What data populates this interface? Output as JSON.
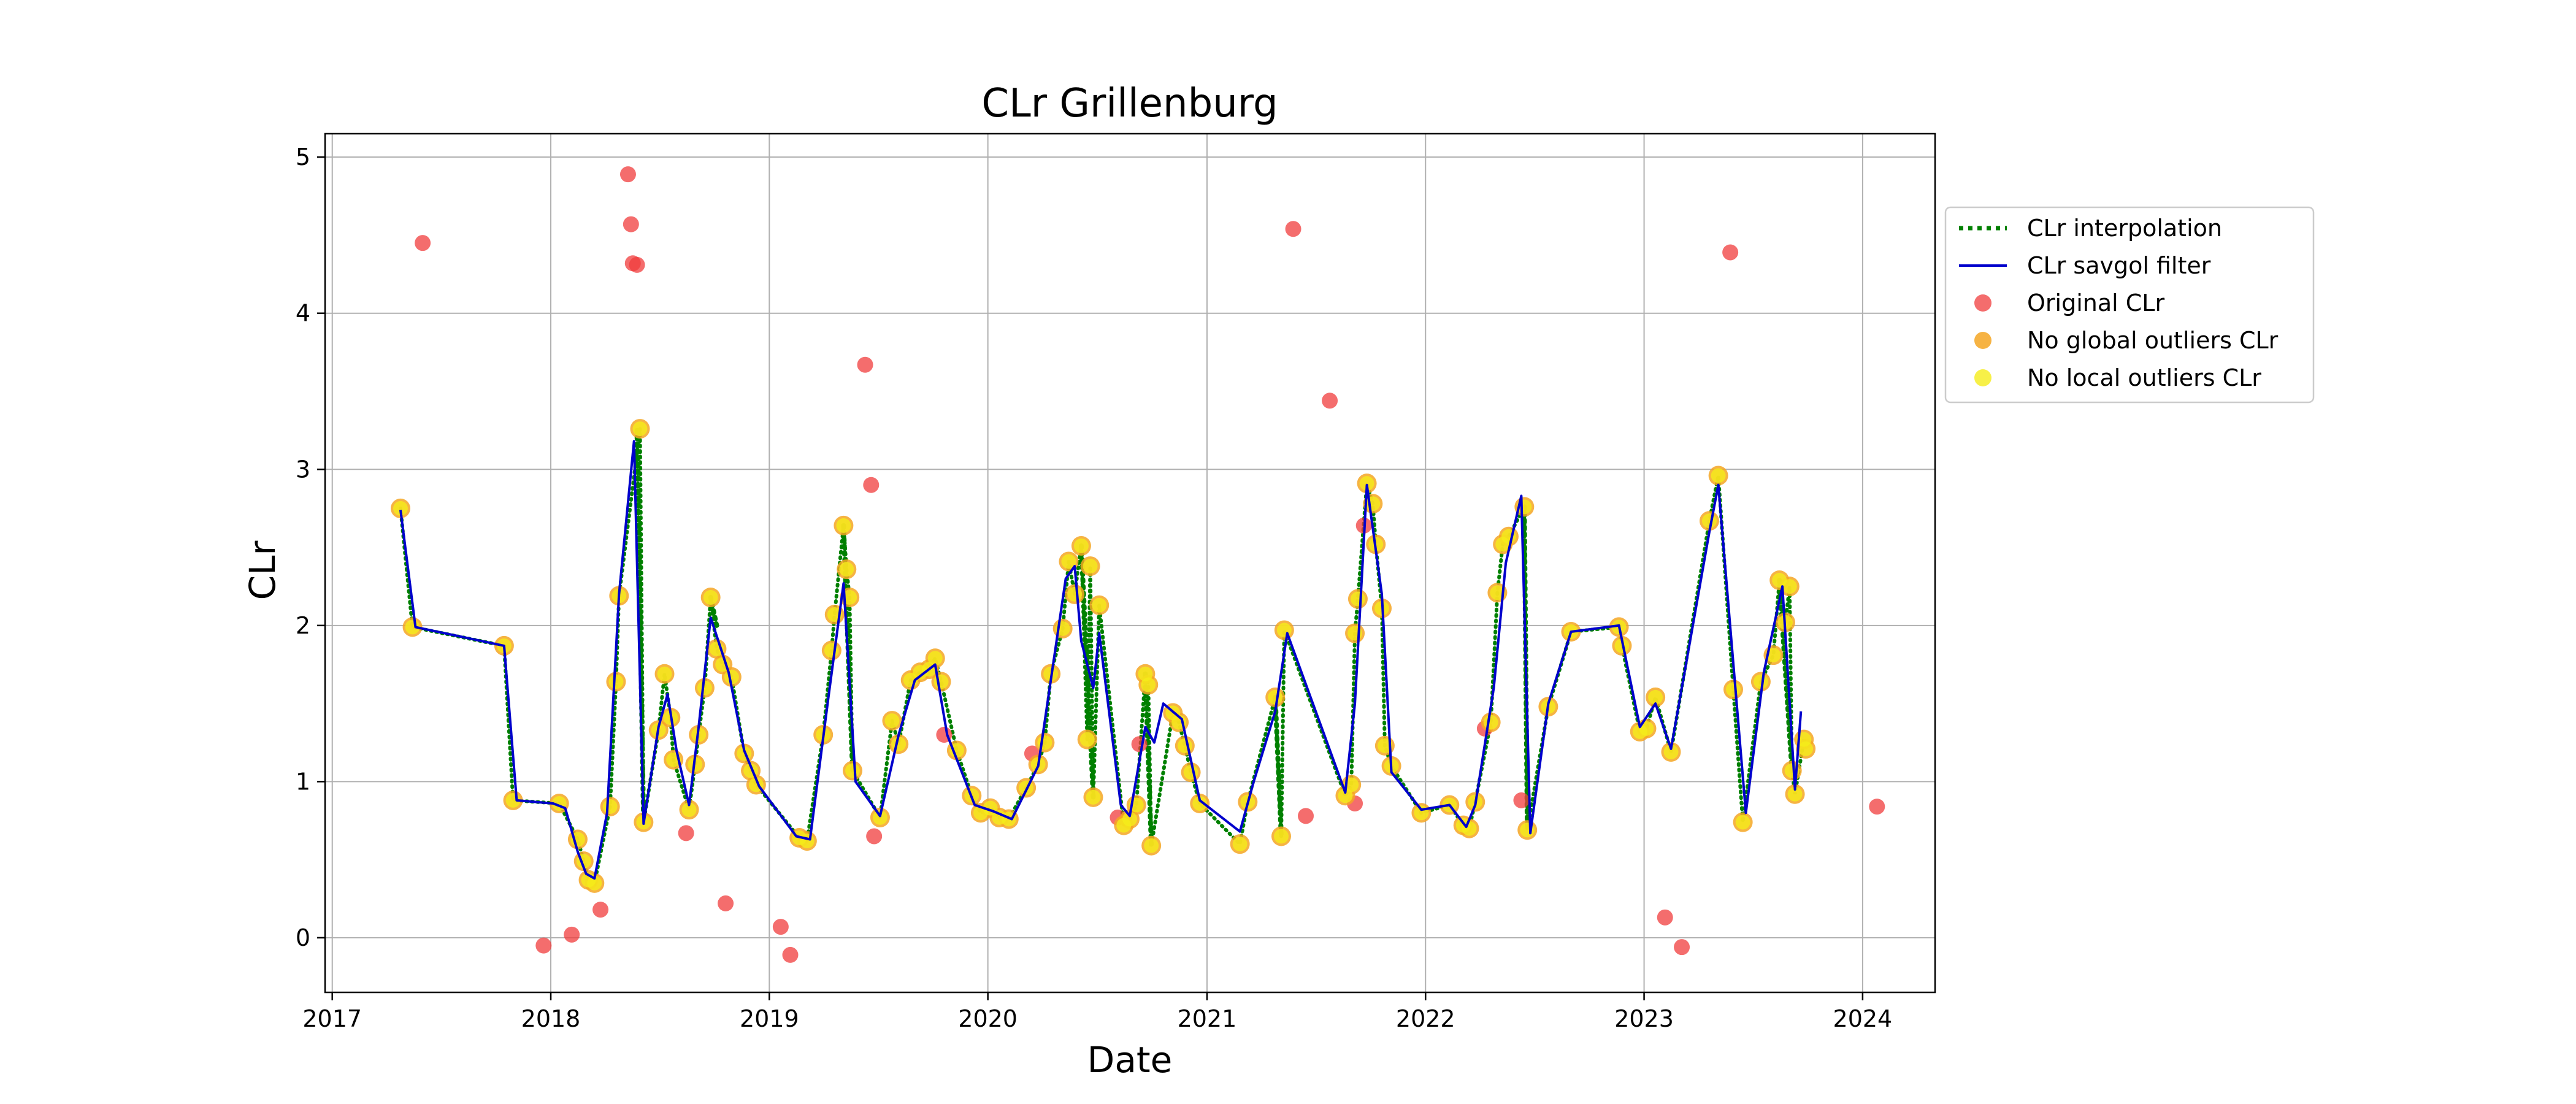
{
  "chart_data": {
    "type": "line",
    "title": "CLr Grillenburg",
    "xlabel": "Date",
    "ylabel": "CLr",
    "x_axis_type": "date",
    "xlim": [
      "2016-12-20",
      "2024-05-01"
    ],
    "ylim": [
      -0.35,
      5.15
    ],
    "x_ticks": [
      "2017",
      "2018",
      "2019",
      "2020",
      "2021",
      "2022",
      "2023",
      "2024"
    ],
    "y_ticks": [
      "0",
      "1",
      "2",
      "3",
      "4",
      "5"
    ],
    "grid": true,
    "legend_position": "right-outside-top",
    "colors": {
      "interpolation": "#008000",
      "savgol": "#0000cc",
      "original": "#f03c3c",
      "global": "#f5a623",
      "local": "#f5ec1a"
    },
    "legend": [
      {
        "key": "interpolation",
        "label": "CLr interpolation"
      },
      {
        "key": "savgol",
        "label": "CLr savgol filter"
      },
      {
        "key": "original",
        "label": "Original CLr"
      },
      {
        "key": "global",
        "label": "No global outliers CLr"
      },
      {
        "key": "local",
        "label": "No local outliers CLr"
      }
    ],
    "series": [
      {
        "name": "Original CLr",
        "role": "outliers",
        "points": [
          [
            "2017-06-01",
            4.45
          ],
          [
            "2017-12-20",
            -0.05
          ],
          [
            "2018-02-05",
            0.02
          ],
          [
            "2018-03-25",
            0.18
          ],
          [
            "2018-05-10",
            4.89
          ],
          [
            "2018-05-15",
            4.57
          ],
          [
            "2018-05-18",
            4.32
          ],
          [
            "2018-05-25",
            4.31
          ],
          [
            "2018-08-15",
            0.67
          ],
          [
            "2018-10-20",
            0.22
          ],
          [
            "2019-01-20",
            0.07
          ],
          [
            "2019-02-05",
            -0.11
          ],
          [
            "2019-06-10",
            3.67
          ],
          [
            "2019-06-20",
            2.9
          ],
          [
            "2019-06-25",
            0.65
          ],
          [
            "2019-10-20",
            1.3
          ],
          [
            "2020-03-15",
            1.18
          ],
          [
            "2020-08-05",
            0.77
          ],
          [
            "2020-09-10",
            1.24
          ],
          [
            "2021-05-25",
            4.54
          ],
          [
            "2021-06-15",
            0.78
          ],
          [
            "2021-07-25",
            3.44
          ],
          [
            "2021-09-05",
            0.86
          ],
          [
            "2021-09-20",
            2.64
          ],
          [
            "2022-04-10",
            1.34
          ],
          [
            "2022-06-10",
            0.88
          ],
          [
            "2023-02-05",
            0.13
          ],
          [
            "2023-03-05",
            -0.06
          ],
          [
            "2023-05-25",
            4.39
          ],
          [
            "2024-01-25",
            0.84
          ]
        ]
      },
      {
        "name": "No local outliers CLr",
        "role": "clean",
        "points": [
          [
            "2017-04-25",
            2.75
          ],
          [
            "2017-05-15",
            1.99
          ],
          [
            "2017-10-15",
            1.87
          ],
          [
            "2017-10-30",
            0.88
          ],
          [
            "2018-01-15",
            0.86
          ],
          [
            "2018-02-15",
            0.63
          ],
          [
            "2018-02-25",
            0.49
          ],
          [
            "2018-03-05",
            0.37
          ],
          [
            "2018-03-15",
            0.35
          ],
          [
            "2018-04-10",
            0.84
          ],
          [
            "2018-04-20",
            1.64
          ],
          [
            "2018-04-25",
            2.19
          ],
          [
            "2018-05-30",
            3.26
          ],
          [
            "2018-06-05",
            0.74
          ],
          [
            "2018-06-30",
            1.33
          ],
          [
            "2018-07-10",
            1.69
          ],
          [
            "2018-07-20",
            1.41
          ],
          [
            "2018-07-25",
            1.14
          ],
          [
            "2018-08-20",
            0.82
          ],
          [
            "2018-08-30",
            1.11
          ],
          [
            "2018-09-05",
            1.3
          ],
          [
            "2018-09-15",
            1.6
          ],
          [
            "2018-09-25",
            2.18
          ],
          [
            "2018-10-05",
            1.85
          ],
          [
            "2018-10-15",
            1.75
          ],
          [
            "2018-10-30",
            1.67
          ],
          [
            "2018-11-20",
            1.18
          ],
          [
            "2018-12-01",
            1.07
          ],
          [
            "2018-12-10",
            0.98
          ],
          [
            "2019-02-20",
            0.64
          ],
          [
            "2019-03-05",
            0.62
          ],
          [
            "2019-04-01",
            1.3
          ],
          [
            "2019-04-15",
            1.84
          ],
          [
            "2019-04-20",
            2.07
          ],
          [
            "2019-05-05",
            2.64
          ],
          [
            "2019-05-10",
            2.36
          ],
          [
            "2019-05-15",
            2.18
          ],
          [
            "2019-05-20",
            1.07
          ],
          [
            "2019-07-05",
            0.77
          ],
          [
            "2019-07-25",
            1.39
          ],
          [
            "2019-08-05",
            1.24
          ],
          [
            "2019-08-25",
            1.65
          ],
          [
            "2019-09-10",
            1.7
          ],
          [
            "2019-09-25",
            1.72
          ],
          [
            "2019-10-05",
            1.79
          ],
          [
            "2019-10-15",
            1.64
          ],
          [
            "2019-11-10",
            1.2
          ],
          [
            "2019-12-05",
            0.91
          ],
          [
            "2019-12-20",
            0.8
          ],
          [
            "2020-01-05",
            0.83
          ],
          [
            "2020-01-20",
            0.77
          ],
          [
            "2020-02-05",
            0.76
          ],
          [
            "2020-03-05",
            0.96
          ],
          [
            "2020-03-25",
            1.11
          ],
          [
            "2020-04-05",
            1.25
          ],
          [
            "2020-04-15",
            1.69
          ],
          [
            "2020-05-05",
            1.98
          ],
          [
            "2020-05-15",
            2.41
          ],
          [
            "2020-05-25",
            2.2
          ],
          [
            "2020-06-05",
            2.51
          ],
          [
            "2020-06-15",
            1.27
          ],
          [
            "2020-06-20",
            2.38
          ],
          [
            "2020-06-25",
            0.9
          ],
          [
            "2020-07-05",
            2.13
          ],
          [
            "2020-08-15",
            0.72
          ],
          [
            "2020-08-25",
            0.76
          ],
          [
            "2020-09-05",
            0.85
          ],
          [
            "2020-09-20",
            1.69
          ],
          [
            "2020-09-25",
            1.62
          ],
          [
            "2020-09-30",
            0.59
          ],
          [
            "2020-11-05",
            1.44
          ],
          [
            "2020-11-15",
            1.38
          ],
          [
            "2020-11-25",
            1.23
          ],
          [
            "2020-12-05",
            1.06
          ],
          [
            "2020-12-20",
            0.86
          ],
          [
            "2021-02-25",
            0.6
          ],
          [
            "2021-03-10",
            0.87
          ],
          [
            "2021-04-25",
            1.54
          ],
          [
            "2021-05-05",
            0.65
          ],
          [
            "2021-05-10",
            1.97
          ],
          [
            "2021-08-20",
            0.91
          ],
          [
            "2021-08-30",
            0.98
          ],
          [
            "2021-09-05",
            1.95
          ],
          [
            "2021-09-10",
            2.17
          ],
          [
            "2021-09-25",
            2.91
          ],
          [
            "2021-10-05",
            2.78
          ],
          [
            "2021-10-10",
            2.52
          ],
          [
            "2021-10-20",
            2.11
          ],
          [
            "2021-10-25",
            1.23
          ],
          [
            "2021-11-05",
            1.1
          ],
          [
            "2021-12-25",
            0.8
          ],
          [
            "2022-02-10",
            0.85
          ],
          [
            "2022-03-05",
            0.72
          ],
          [
            "2022-03-15",
            0.7
          ],
          [
            "2022-03-25",
            0.87
          ],
          [
            "2022-04-20",
            1.38
          ],
          [
            "2022-05-01",
            2.21
          ],
          [
            "2022-05-10",
            2.52
          ],
          [
            "2022-05-20",
            2.57
          ],
          [
            "2022-06-15",
            2.76
          ],
          [
            "2022-06-20",
            0.69
          ],
          [
            "2022-07-25",
            1.48
          ],
          [
            "2022-09-01",
            1.96
          ],
          [
            "2022-11-20",
            1.99
          ],
          [
            "2022-11-25",
            1.87
          ],
          [
            "2022-12-25",
            1.32
          ],
          [
            "2023-01-05",
            1.34
          ],
          [
            "2023-01-20",
            1.54
          ],
          [
            "2023-02-15",
            1.19
          ],
          [
            "2023-04-20",
            2.67
          ],
          [
            "2023-05-05",
            2.96
          ],
          [
            "2023-05-30",
            1.59
          ],
          [
            "2023-06-15",
            0.74
          ],
          [
            "2023-07-15",
            1.64
          ],
          [
            "2023-08-05",
            1.81
          ],
          [
            "2023-08-15",
            2.29
          ],
          [
            "2023-08-25",
            2.02
          ],
          [
            "2023-09-01",
            2.25
          ],
          [
            "2023-09-05",
            1.07
          ],
          [
            "2023-09-10",
            0.92
          ],
          [
            "2023-09-25",
            1.27
          ],
          [
            "2023-09-28",
            1.21
          ]
        ]
      },
      {
        "name": "CLr savgol filter",
        "role": "smooth",
        "points": [
          [
            "2017-04-25",
            2.74
          ],
          [
            "2017-05-20",
            1.99
          ],
          [
            "2017-10-15",
            1.87
          ],
          [
            "2017-11-05",
            0.88
          ],
          [
            "2018-01-05",
            0.86
          ],
          [
            "2018-01-25",
            0.83
          ],
          [
            "2018-02-15",
            0.55
          ],
          [
            "2018-03-01",
            0.41
          ],
          [
            "2018-03-15",
            0.38
          ],
          [
            "2018-04-05",
            0.8
          ],
          [
            "2018-04-25",
            2.2
          ],
          [
            "2018-05-20",
            3.18
          ],
          [
            "2018-06-05",
            0.73
          ],
          [
            "2018-06-30",
            1.35
          ],
          [
            "2018-07-15",
            1.56
          ],
          [
            "2018-07-30",
            1.2
          ],
          [
            "2018-08-20",
            0.85
          ],
          [
            "2018-09-05",
            1.35
          ],
          [
            "2018-09-25",
            2.05
          ],
          [
            "2018-10-25",
            1.7
          ],
          [
            "2018-11-20",
            1.2
          ],
          [
            "2018-12-15",
            0.97
          ],
          [
            "2019-02-15",
            0.65
          ],
          [
            "2019-03-10",
            0.63
          ],
          [
            "2019-04-10",
            1.55
          ],
          [
            "2019-05-05",
            2.27
          ],
          [
            "2019-05-25",
            1.0
          ],
          [
            "2019-07-05",
            0.78
          ],
          [
            "2019-08-05",
            1.3
          ],
          [
            "2019-09-01",
            1.65
          ],
          [
            "2019-10-05",
            1.75
          ],
          [
            "2019-10-25",
            1.3
          ],
          [
            "2019-12-10",
            0.85
          ],
          [
            "2020-01-10",
            0.81
          ],
          [
            "2020-02-10",
            0.76
          ],
          [
            "2020-03-25",
            1.1
          ],
          [
            "2020-05-10",
            2.3
          ],
          [
            "2020-05-25",
            2.38
          ],
          [
            "2020-06-05",
            1.9
          ],
          [
            "2020-06-25",
            1.6
          ],
          [
            "2020-07-05",
            1.95
          ],
          [
            "2020-08-10",
            0.85
          ],
          [
            "2020-08-25",
            0.78
          ],
          [
            "2020-09-20",
            1.35
          ],
          [
            "2020-10-05",
            1.25
          ],
          [
            "2020-10-20",
            1.5
          ],
          [
            "2020-11-20",
            1.4
          ],
          [
            "2020-12-20",
            0.88
          ],
          [
            "2021-02-25",
            0.68
          ],
          [
            "2021-03-20",
            1.0
          ],
          [
            "2021-04-25",
            1.45
          ],
          [
            "2021-05-15",
            1.95
          ],
          [
            "2021-08-20",
            0.93
          ],
          [
            "2021-09-05",
            1.5
          ],
          [
            "2021-09-25",
            2.9
          ],
          [
            "2021-10-20",
            2.2
          ],
          [
            "2021-11-05",
            1.06
          ],
          [
            "2021-12-25",
            0.82
          ],
          [
            "2022-02-10",
            0.85
          ],
          [
            "2022-03-10",
            0.71
          ],
          [
            "2022-03-25",
            0.85
          ],
          [
            "2022-04-25",
            1.6
          ],
          [
            "2022-05-15",
            2.4
          ],
          [
            "2022-06-10",
            2.83
          ],
          [
            "2022-06-25",
            0.67
          ],
          [
            "2022-07-25",
            1.5
          ],
          [
            "2022-09-01",
            1.96
          ],
          [
            "2022-11-20",
            2.0
          ],
          [
            "2022-12-25",
            1.35
          ],
          [
            "2023-01-20",
            1.5
          ],
          [
            "2023-02-15",
            1.21
          ],
          [
            "2023-04-20",
            2.6
          ],
          [
            "2023-05-05",
            2.9
          ],
          [
            "2023-06-20",
            0.8
          ],
          [
            "2023-07-20",
            1.7
          ],
          [
            "2023-08-20",
            2.25
          ],
          [
            "2023-09-10",
            0.95
          ],
          [
            "2023-09-20",
            1.45
          ]
        ]
      },
      {
        "name": "CLr interpolation",
        "role": "interpolation-segments",
        "segments": [
          [
            [
              "2018-05-25",
              3.25
            ],
            [
              "2018-06-05",
              0.74
            ]
          ],
          [
            [
              "2018-09-25",
              2.18
            ],
            [
              "2018-10-05",
              2.0
            ]
          ],
          [
            [
              "2019-05-05",
              2.64
            ],
            [
              "2019-05-20",
              1.07
            ]
          ],
          [
            [
              "2020-06-05",
              2.51
            ],
            [
              "2020-06-25",
              0.9
            ]
          ],
          [
            [
              "2020-09-20",
              1.69
            ],
            [
              "2020-09-30",
              0.59
            ]
          ],
          [
            [
              "2021-04-25",
              1.54
            ],
            [
              "2021-05-05",
              0.65
            ]
          ],
          [
            [
              "2022-06-15",
              2.76
            ],
            [
              "2022-06-20",
              0.69
            ]
          ],
          [
            [
              "2023-08-15",
              2.29
            ],
            [
              "2023-09-05",
              1.07
            ]
          ]
        ]
      }
    ]
  }
}
